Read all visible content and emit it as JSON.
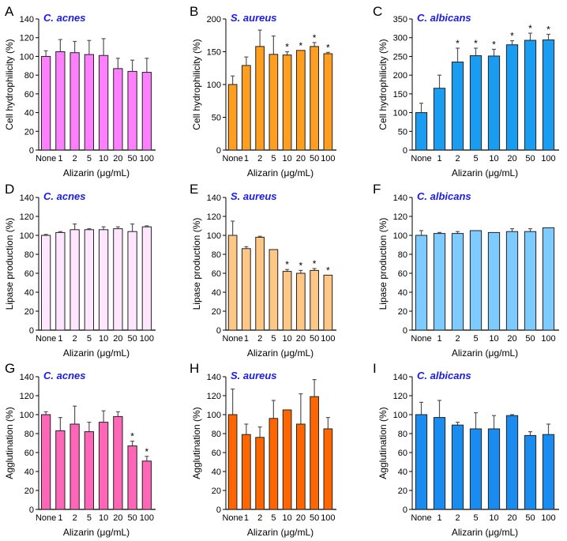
{
  "figure": {
    "xlabel": "Alizarin (μg/mL)",
    "categories": [
      "None",
      "1",
      "2",
      "5",
      "10",
      "20",
      "50",
      "100"
    ]
  },
  "chart_data": [
    {
      "panel": "A",
      "type": "bar",
      "title": "C. acnes",
      "xlabel": "Alizarin (μg/mL)",
      "ylabel": "Cell hydrophilicity (%)",
      "categories": [
        "None",
        "1",
        "2",
        "5",
        "10",
        "20",
        "50",
        "100"
      ],
      "values": [
        100,
        105,
        104,
        102,
        101,
        87,
        84,
        83
      ],
      "errors": [
        6,
        13,
        12,
        15,
        18,
        11,
        12,
        15
      ],
      "significant": [
        false,
        false,
        false,
        false,
        false,
        false,
        false,
        false
      ],
      "ylim": [
        0,
        140
      ],
      "yticks": [
        0,
        20,
        40,
        60,
        80,
        100,
        120,
        140
      ],
      "color": "#ff80ff",
      "grid": false
    },
    {
      "panel": "B",
      "type": "bar",
      "title": "S. aureus",
      "xlabel": "Alizarin (μg/mL)",
      "ylabel": "Cell hydrophilicity (%)",
      "categories": [
        "None",
        "1",
        "2",
        "5",
        "10",
        "20",
        "50",
        "100"
      ],
      "values": [
        100,
        129,
        158,
        146,
        145,
        152,
        158,
        147
      ],
      "errors": [
        13,
        13,
        25,
        28,
        5,
        0,
        6,
        2
      ],
      "significant": [
        false,
        false,
        false,
        false,
        true,
        true,
        true,
        true
      ],
      "ylim": [
        0,
        200
      ],
      "yticks": [
        0,
        50,
        100,
        150,
        200
      ],
      "color": "#ff9e1f",
      "grid": false
    },
    {
      "panel": "C",
      "type": "bar",
      "title": "C. albicans",
      "xlabel": "Alizarin (μg/mL)",
      "ylabel": "Cell hydrophilicity (%)",
      "categories": [
        "None",
        "1",
        "2",
        "5",
        "10",
        "20",
        "50",
        "100"
      ],
      "values": [
        100,
        165,
        235,
        252,
        251,
        281,
        293,
        294
      ],
      "errors": [
        25,
        35,
        37,
        20,
        18,
        11,
        19,
        15
      ],
      "significant": [
        false,
        false,
        true,
        true,
        true,
        true,
        true,
        true
      ],
      "ylim": [
        0,
        350
      ],
      "yticks": [
        0,
        50,
        100,
        150,
        200,
        250,
        300,
        350
      ],
      "color": "#1a9cf0",
      "grid": false
    },
    {
      "panel": "D",
      "type": "bar",
      "title": "C. acnes",
      "xlabel": "Alizarin (μg/mL)",
      "ylabel": "Lipase  production (%)",
      "categories": [
        "None",
        "1",
        "2",
        "5",
        "10",
        "20",
        "50",
        "100"
      ],
      "values": [
        100,
        103,
        106,
        106,
        106,
        107,
        104,
        109
      ],
      "errors": [
        1,
        1,
        6,
        1,
        3,
        2,
        8,
        1
      ],
      "significant": [
        false,
        false,
        false,
        false,
        false,
        false,
        false,
        false
      ],
      "ylim": [
        0,
        140
      ],
      "yticks": [
        0,
        20,
        40,
        60,
        80,
        100,
        120,
        140
      ],
      "color": "#ffe6ff",
      "grid": false
    },
    {
      "panel": "E",
      "type": "bar",
      "title": "S. aureus",
      "xlabel": "Alizarin (μg/mL)",
      "ylabel": "Lipase  production (%)",
      "categories": [
        "None",
        "1",
        "2",
        "5",
        "10",
        "20",
        "50",
        "100"
      ],
      "values": [
        100,
        86,
        98,
        85,
        62,
        60,
        63,
        58
      ],
      "errors": [
        15,
        2,
        1,
        0,
        2,
        3,
        2,
        0
      ],
      "significant": [
        false,
        false,
        false,
        false,
        true,
        true,
        true,
        true
      ],
      "ylim": [
        0,
        140
      ],
      "yticks": [
        0,
        20,
        40,
        60,
        80,
        100,
        120,
        140
      ],
      "color": "#ffc786",
      "grid": false
    },
    {
      "panel": "F",
      "type": "bar",
      "title": "C. albicans",
      "xlabel": "Alizarin (μg/mL)",
      "ylabel": "Lipase  production (%)",
      "categories": [
        "None",
        "1",
        "2",
        "5",
        "10",
        "20",
        "50",
        "100"
      ],
      "values": [
        100,
        102,
        102,
        105,
        103,
        104,
        104,
        108
      ],
      "errors": [
        5,
        1,
        2,
        0,
        0,
        3,
        3,
        0
      ],
      "significant": [
        false,
        false,
        false,
        false,
        false,
        false,
        false,
        false
      ],
      "ylim": [
        0,
        140
      ],
      "yticks": [
        0,
        20,
        40,
        60,
        80,
        100,
        120,
        140
      ],
      "color": "#7ecbff",
      "grid": false
    },
    {
      "panel": "G",
      "type": "bar",
      "title": "C. acnes",
      "xlabel": "Alizarin (μg/mL)",
      "ylabel": "Agglutination (%)",
      "categories": [
        "None",
        "1",
        "2",
        "5",
        "10",
        "20",
        "50",
        "100"
      ],
      "values": [
        100,
        83,
        90,
        82,
        92,
        98,
        67,
        51
      ],
      "errors": [
        3,
        14,
        19,
        10,
        12,
        5,
        5,
        5
      ],
      "significant": [
        false,
        false,
        false,
        false,
        false,
        false,
        true,
        true
      ],
      "ylim": [
        0,
        140
      ],
      "yticks": [
        0,
        20,
        40,
        60,
        80,
        100,
        120,
        140
      ],
      "color": "#ff66b8",
      "grid": false
    },
    {
      "panel": "H",
      "type": "bar",
      "title": "S. aureus",
      "xlabel": "Alizarin (μg/mL)",
      "ylabel": "Agglutination (%)",
      "categories": [
        "None",
        "1",
        "2",
        "5",
        "10",
        "20",
        "50",
        "100"
      ],
      "values": [
        100,
        79,
        76,
        96,
        105,
        90,
        119,
        85
      ],
      "errors": [
        27,
        11,
        11,
        19,
        0,
        32,
        18,
        12
      ],
      "significant": [
        false,
        false,
        false,
        false,
        false,
        false,
        false,
        false
      ],
      "ylim": [
        0,
        140
      ],
      "yticks": [
        0,
        20,
        40,
        60,
        80,
        100,
        120,
        140
      ],
      "color": "#ff6600",
      "grid": false
    },
    {
      "panel": "I",
      "type": "bar",
      "title": "C. albicans",
      "xlabel": "Alizarin (μg/mL)",
      "ylabel": "Agglutination (%)",
      "categories": [
        "None",
        "1",
        "2",
        "5",
        "10",
        "20",
        "50",
        "100"
      ],
      "values": [
        100,
        97,
        89,
        85,
        85,
        99,
        78,
        79
      ],
      "errors": [
        13,
        18,
        3,
        17,
        14,
        1,
        4,
        11
      ],
      "significant": [
        false,
        false,
        false,
        false,
        false,
        false,
        false,
        false
      ],
      "ylim": [
        0,
        140
      ],
      "yticks": [
        0,
        20,
        40,
        60,
        80,
        100,
        120,
        140
      ],
      "color": "#1a8cf0",
      "grid": false
    }
  ]
}
